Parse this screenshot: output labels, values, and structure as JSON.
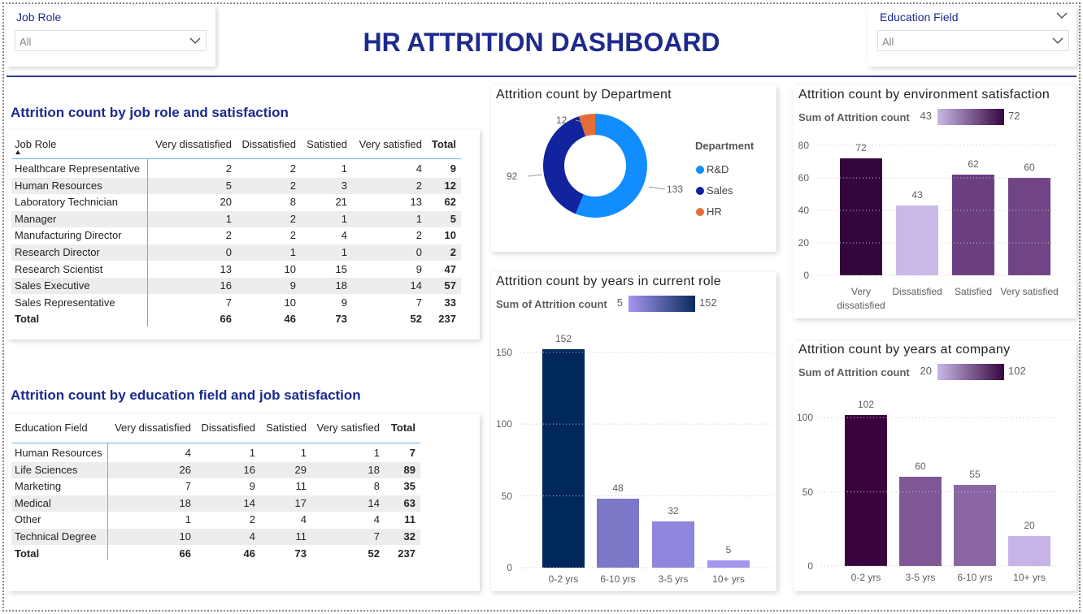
{
  "title": "HR ATTRITION DASHBOARD",
  "slicers": [
    {
      "label": "Job Role",
      "value": "All"
    },
    {
      "label": "Education Field",
      "value": "All"
    }
  ],
  "tables": [
    {
      "title": "Attrition count by job role and satisfaction",
      "columns": [
        "Job Role",
        "Very dissatisfied",
        "Dissatisfied",
        "Satistied",
        "Very satisfied",
        "Total"
      ],
      "rows": [
        [
          "Healthcare Representative",
          2,
          2,
          1,
          4,
          9
        ],
        [
          "Human Resources",
          5,
          2,
          3,
          2,
          12
        ],
        [
          "Laboratory Technician",
          20,
          8,
          21,
          13,
          62
        ],
        [
          "Manager",
          1,
          2,
          1,
          1,
          5
        ],
        [
          "Manufacturing Director",
          2,
          2,
          4,
          2,
          10
        ],
        [
          "Research Director",
          0,
          1,
          1,
          0,
          2
        ],
        [
          "Research Scientist",
          13,
          10,
          15,
          9,
          47
        ],
        [
          "Sales Executive",
          16,
          9,
          18,
          14,
          57
        ],
        [
          "Sales Representative",
          7,
          10,
          9,
          7,
          33
        ]
      ],
      "total_row": [
        "Total",
        66,
        46,
        73,
        52,
        237
      ]
    },
    {
      "title": "Attrition count by education field and job satisfaction",
      "columns": [
        "Education Field",
        "Very dissatisfied",
        "Dissatisfied",
        "Satistied",
        "Very satisfied",
        "Total"
      ],
      "rows": [
        [
          "Human Resources",
          4,
          1,
          1,
          1,
          7
        ],
        [
          "Life Sciences",
          26,
          16,
          29,
          18,
          89
        ],
        [
          "Marketing",
          7,
          9,
          11,
          8,
          35
        ],
        [
          "Medical",
          18,
          14,
          17,
          14,
          63
        ],
        [
          "Other",
          1,
          2,
          4,
          4,
          11
        ],
        [
          "Technical Degree",
          10,
          4,
          11,
          7,
          32
        ]
      ],
      "total_row": [
        "Total",
        66,
        46,
        73,
        52,
        237
      ]
    }
  ],
  "chart_data": [
    {
      "type": "donut",
      "title": "Attrition count by Department",
      "legend_title": "Department",
      "categories": [
        "R&D",
        "Sales",
        "HR"
      ],
      "values": [
        133,
        92,
        12
      ],
      "colors": [
        "#118dff",
        "#12239e",
        "#e66c37"
      ]
    },
    {
      "type": "bar",
      "title": "Attrition count by environment satisfaction",
      "color_scale": {
        "label": "Sum of Attrition count",
        "min": 43,
        "max": 72,
        "colors": [
          "#c9b8e8",
          "#35063e"
        ]
      },
      "categories": [
        "Very dissatisfied",
        "Dissatisfied",
        "Satisfied",
        "Very satisfied"
      ],
      "values": [
        72,
        43,
        62,
        60
      ],
      "colors": [
        "#35063e",
        "#c9b8e8",
        "#6b3f80",
        "#704485"
      ],
      "ylim": [
        0,
        80
      ],
      "yticks": [
        0,
        20,
        40,
        60,
        80
      ],
      "grid": true
    },
    {
      "type": "bar",
      "title": "Attrition count by years in current role",
      "color_scale": {
        "label": "Sum of Attrition count",
        "min": 5,
        "max": 152,
        "colors": [
          "#a596f0",
          "#0b2a5e"
        ]
      },
      "categories": [
        "0-2 yrs",
        "6-10 yrs",
        "3-5 yrs",
        "10+ yrs"
      ],
      "values": [
        152,
        48,
        32,
        5
      ],
      "colors": [
        "#01285a",
        "#7b78c8",
        "#8f86dd",
        "#a596f0"
      ],
      "ylim": [
        0,
        160
      ],
      "yticks": [
        0,
        50,
        100,
        150
      ],
      "grid": true
    },
    {
      "type": "bar",
      "title": "Attrition count by years at company",
      "color_scale": {
        "label": "Sum of Attrition count",
        "min": 20,
        "max": 102,
        "colors": [
          "#c9b8e8",
          "#35063e"
        ]
      },
      "categories": [
        "0-2 yrs",
        "3-5 yrs",
        "6-10 yrs",
        "10+ yrs"
      ],
      "values": [
        102,
        60,
        55,
        20
      ],
      "colors": [
        "#3a0340",
        "#7f5797",
        "#8b66a5",
        "#c6b4e6"
      ],
      "ylim": [
        0,
        110
      ],
      "yticks": [
        0,
        50,
        100
      ],
      "grid": true
    }
  ]
}
